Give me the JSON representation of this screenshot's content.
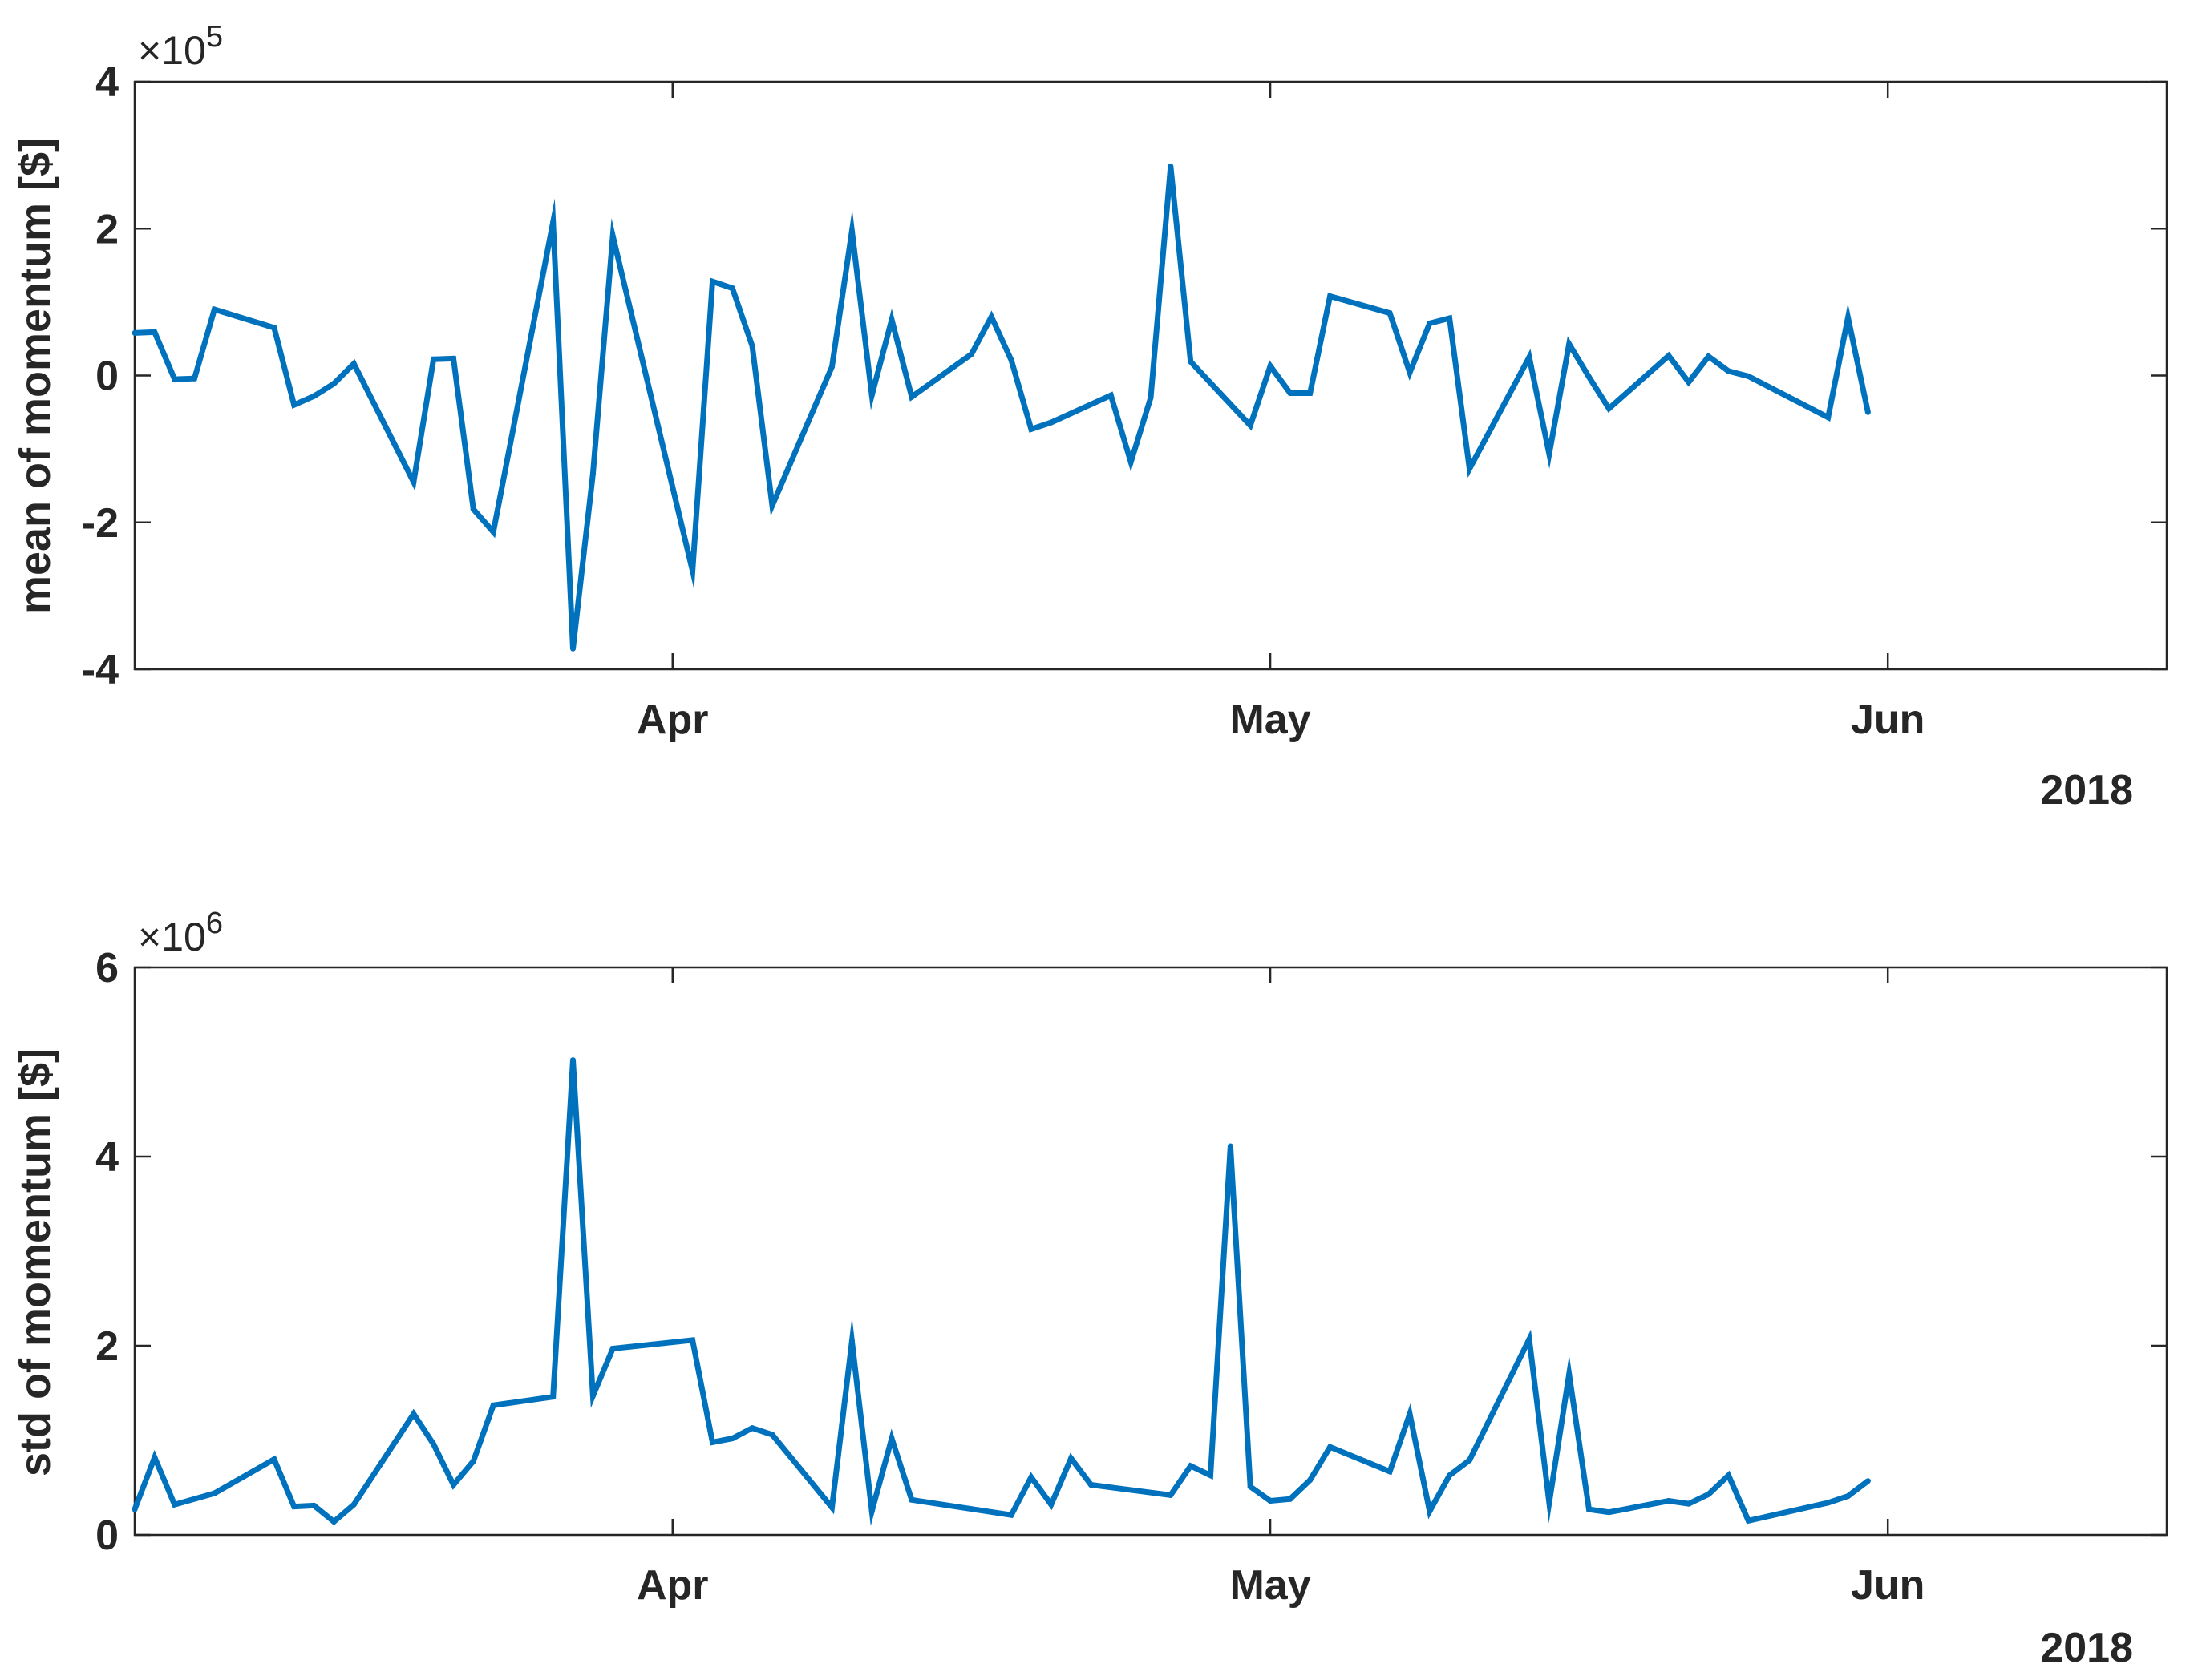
{
  "chart_data": [
    {
      "type": "line",
      "ylabel": "mean of momentum [$]",
      "xlabel": "",
      "exponent_base": "×10",
      "exponent_power": "5",
      "ylim": [
        -4,
        4
      ],
      "yticks": [
        {
          "value": -4,
          "label": "-4"
        },
        {
          "value": -2,
          "label": "-2"
        },
        {
          "value": 0,
          "label": "0"
        },
        {
          "value": 2,
          "label": "2"
        },
        {
          "value": 4,
          "label": "4"
        }
      ],
      "xlim": [
        "2018-03-05",
        "2018-06-15"
      ],
      "xticks": [
        {
          "date": "2018-04-01",
          "label": "Apr"
        },
        {
          "date": "2018-05-01",
          "label": "May"
        },
        {
          "date": "2018-06-01",
          "label": "Jun"
        }
      ],
      "year_label": "2018",
      "grid": false,
      "series": [
        {
          "color": "#0072BD",
          "x": [
            "2018-03-05",
            "2018-03-06",
            "2018-03-07",
            "2018-03-08",
            "2018-03-09",
            "2018-03-12",
            "2018-03-13",
            "2018-03-14",
            "2018-03-15",
            "2018-03-16",
            "2018-03-19",
            "2018-03-20",
            "2018-03-21",
            "2018-03-22",
            "2018-03-23",
            "2018-03-26",
            "2018-03-27",
            "2018-03-28",
            "2018-03-29",
            "2018-04-02",
            "2018-04-03",
            "2018-04-04",
            "2018-04-05",
            "2018-04-06",
            "2018-04-09",
            "2018-04-10",
            "2018-04-11",
            "2018-04-12",
            "2018-04-13",
            "2018-04-16",
            "2018-04-17",
            "2018-04-18",
            "2018-04-19",
            "2018-04-20",
            "2018-04-23",
            "2018-04-24",
            "2018-04-25",
            "2018-04-26",
            "2018-04-27",
            "2018-04-30",
            "2018-05-01",
            "2018-05-02",
            "2018-05-03",
            "2018-05-04",
            "2018-05-07",
            "2018-05-08",
            "2018-05-09",
            "2018-05-10",
            "2018-05-11",
            "2018-05-14",
            "2018-05-15",
            "2018-05-16",
            "2018-05-17",
            "2018-05-18",
            "2018-05-21",
            "2018-05-22",
            "2018-05-23",
            "2018-05-24",
            "2018-05-25",
            "2018-05-29",
            "2018-05-30",
            "2018-05-31"
          ],
          "values": [
            0.58,
            0.59,
            -0.05,
            -0.04,
            0.9,
            0.65,
            -0.4,
            -0.28,
            -0.11,
            0.16,
            -1.45,
            0.22,
            0.23,
            -1.82,
            -2.13,
            2.09,
            -3.72,
            -1.34,
            1.9,
            -2.66,
            1.28,
            1.19,
            0.4,
            -1.77,
            0.12,
            1.97,
            -0.27,
            0.76,
            -0.29,
            0.29,
            0.8,
            0.21,
            -0.73,
            -0.64,
            -0.27,
            -1.18,
            -0.3,
            2.85,
            0.19,
            -0.68,
            0.13,
            -0.24,
            -0.24,
            1.08,
            0.85,
            0.04,
            0.71,
            0.78,
            -1.27,
            0.25,
            -1.07,
            0.43,
            -0.02,
            -0.45,
            0.27,
            -0.09,
            0.26,
            0.06,
            -0.01,
            -0.57,
            0.79,
            -0.5
          ]
        }
      ]
    },
    {
      "type": "line",
      "ylabel": "std of momentum [$]",
      "xlabel": "",
      "exponent_base": "×10",
      "exponent_power": "6",
      "ylim": [
        0,
        6
      ],
      "yticks": [
        {
          "value": 0,
          "label": "0"
        },
        {
          "value": 2,
          "label": "2"
        },
        {
          "value": 4,
          "label": "4"
        },
        {
          "value": 6,
          "label": "6"
        }
      ],
      "xlim": [
        "2018-03-05",
        "2018-06-15"
      ],
      "xticks": [
        {
          "date": "2018-04-01",
          "label": "Apr"
        },
        {
          "date": "2018-05-01",
          "label": "May"
        },
        {
          "date": "2018-06-01",
          "label": "Jun"
        }
      ],
      "year_label": "2018",
      "grid": false,
      "series": [
        {
          "color": "#0072BD",
          "x": [
            "2018-03-05",
            "2018-03-06",
            "2018-03-07",
            "2018-03-09",
            "2018-03-12",
            "2018-03-13",
            "2018-03-14",
            "2018-03-15",
            "2018-03-16",
            "2018-03-19",
            "2018-03-20",
            "2018-03-21",
            "2018-03-22",
            "2018-03-23",
            "2018-03-26",
            "2018-03-27",
            "2018-03-28",
            "2018-03-29",
            "2018-04-02",
            "2018-04-03",
            "2018-04-04",
            "2018-04-05",
            "2018-04-06",
            "2018-04-09",
            "2018-04-10",
            "2018-04-11",
            "2018-04-12",
            "2018-04-13",
            "2018-04-18",
            "2018-04-19",
            "2018-04-20",
            "2018-04-21",
            "2018-04-22",
            "2018-04-26",
            "2018-04-27",
            "2018-04-28",
            "2018-04-29",
            "2018-04-30",
            "2018-05-01",
            "2018-05-02",
            "2018-05-03",
            "2018-05-04",
            "2018-05-07",
            "2018-05-08",
            "2018-05-09",
            "2018-05-10",
            "2018-05-11",
            "2018-05-14",
            "2018-05-15",
            "2018-05-16",
            "2018-05-17",
            "2018-05-18",
            "2018-05-21",
            "2018-05-22",
            "2018-05-23",
            "2018-05-24",
            "2018-05-25",
            "2018-05-29",
            "2018-05-30",
            "2018-05-31"
          ],
          "values": [
            0.27,
            0.82,
            0.32,
            0.44,
            0.8,
            0.3,
            0.31,
            0.14,
            0.32,
            1.28,
            0.96,
            0.53,
            0.78,
            1.37,
            1.46,
            5.02,
            1.47,
            1.97,
            2.06,
            0.98,
            1.02,
            1.13,
            1.06,
            0.29,
            2.05,
            0.25,
            1.02,
            0.37,
            0.21,
            0.61,
            0.32,
            0.81,
            0.53,
            0.42,
            0.73,
            0.63,
            4.11,
            0.51,
            0.36,
            0.38,
            0.58,
            0.93,
            0.67,
            1.28,
            0.25,
            0.63,
            0.79,
            2.07,
            0.34,
            1.7,
            0.27,
            0.24,
            0.36,
            0.33,
            0.43,
            0.63,
            0.15,
            0.34,
            0.41,
            0.57
          ]
        }
      ]
    }
  ]
}
